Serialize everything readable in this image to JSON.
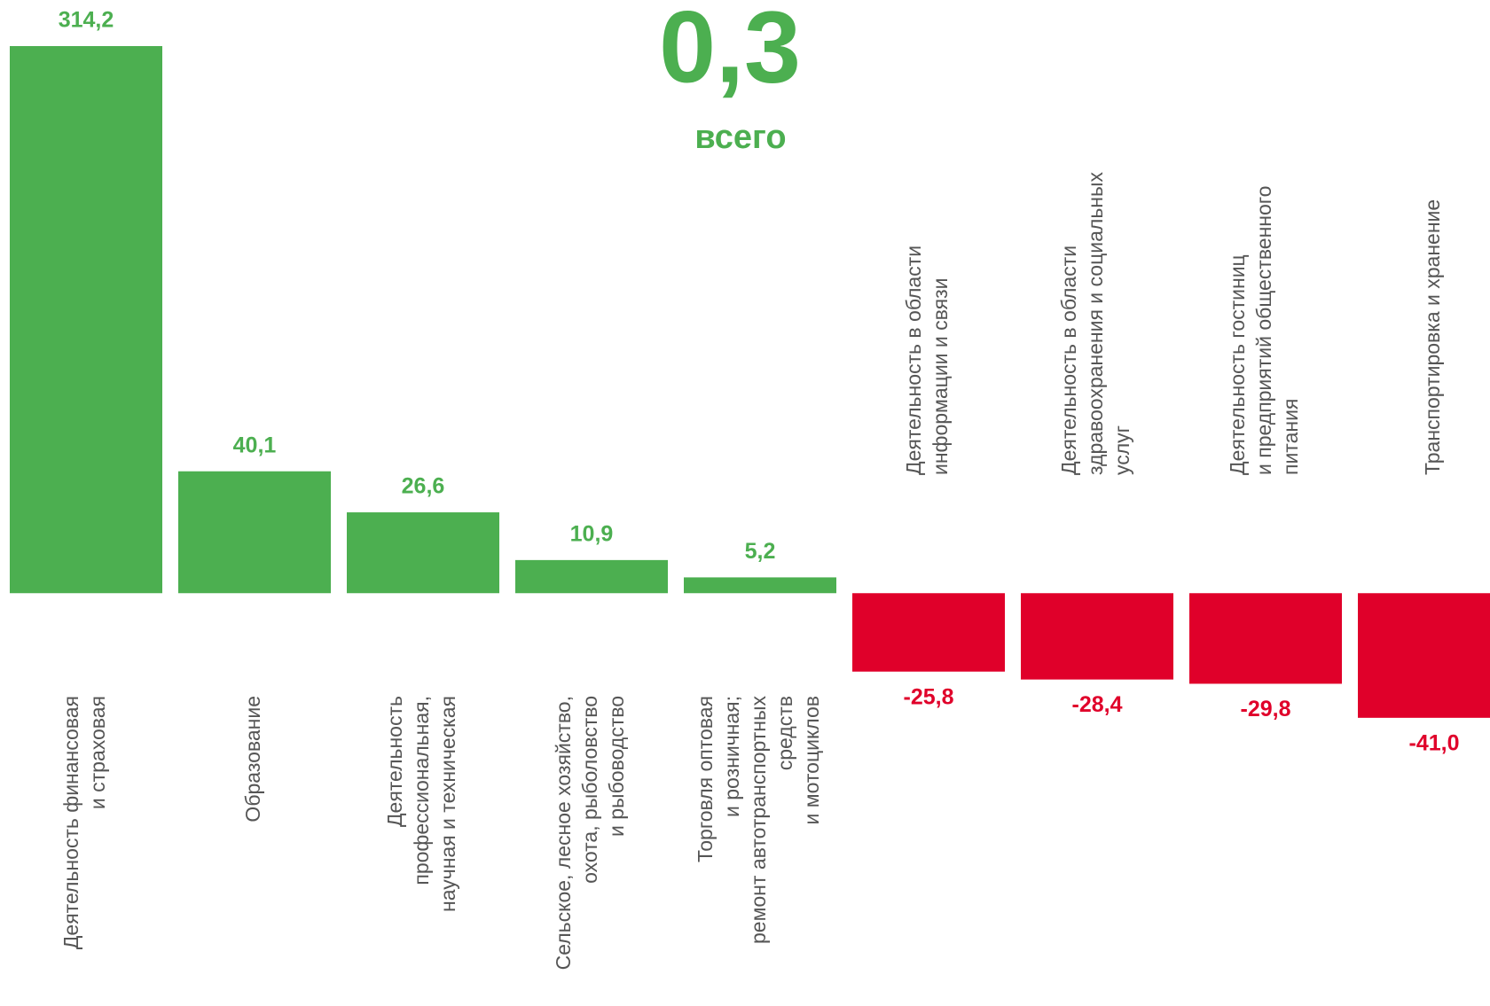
{
  "chart_data": {
    "type": "bar",
    "annotations": [
      "0,3",
      "всего"
    ],
    "categories": [
      [
        "Деятельность  финансовая",
        "и страховая"
      ],
      [
        "Образование"
      ],
      [
        "Деятельность",
        "профессиональная,",
        "научная и техническая"
      ],
      [
        "Сельское, лесное хозяйство,",
        "охота, рыболовство",
        "и рыбоводство"
      ],
      [
        "Торговля оптовая",
        "и розничная;",
        "ремонт автотранспортных",
        "средств",
        "и мотоциклов"
      ],
      [
        "Деятельность в области",
        "информации и связи"
      ],
      [
        "Деятельность в области",
        "здравоохранения и социальных",
        "услуг"
      ],
      [
        "Деятельность гостиниц",
        "и предприятий общественного",
        "питания"
      ],
      [
        "Транспортировка и хранение"
      ]
    ],
    "values": [
      314.2,
      40.1,
      26.6,
      10.9,
      5.2,
      -25.8,
      -28.4,
      -29.8,
      -41.0
    ],
    "value_labels": [
      "314,2",
      "40,1",
      "26,6",
      "10,9",
      "5,2",
      "-25,8",
      "-28,4",
      "-29,8",
      "-41,0"
    ],
    "colors": {
      "positive": "#4caf50",
      "negative": "#e0002a"
    },
    "ylim": [
      -60,
      180
    ]
  }
}
